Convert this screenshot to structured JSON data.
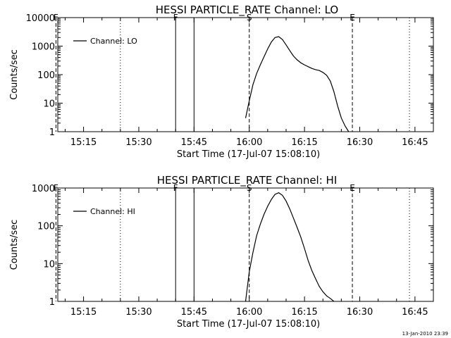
{
  "footer": {
    "timestamp": "13-Jan-2010 23:39"
  },
  "chart_data": [
    {
      "type": "line",
      "title": "HESSI PARTICLE_RATE Channel: LO",
      "xlabel": "Start Time (17-Jul-07 15:08:10)",
      "ylabel": "Counts/sec",
      "xlim": [
        "15:08",
        "16:50"
      ],
      "ylim": [
        1,
        10000
      ],
      "yscale": "log",
      "grid": false,
      "legend": "top-left",
      "x_ticks": [
        "15:15",
        "15:30",
        "15:45",
        "16:00",
        "16:15",
        "16:30",
        "16:45"
      ],
      "y_ticks": [
        "1",
        "10",
        "100",
        "1000",
        "10000"
      ],
      "series": [
        {
          "name": "Channel: LO",
          "x": [
            "15:59",
            "16:00",
            "16:01",
            "16:02",
            "16:03",
            "16:04",
            "16:05",
            "16:06",
            "16:07",
            "16:08",
            "16:09",
            "16:10",
            "16:11",
            "16:12",
            "16:13",
            "16:14",
            "16:15",
            "16:16",
            "16:17",
            "16:18",
            "16:19",
            "16:20",
            "16:21",
            "16:22",
            "16:23",
            "16:24",
            "16:25",
            "16:26",
            "16:27"
          ],
          "values": [
            3,
            12,
            45,
            110,
            220,
            420,
            800,
            1400,
            2000,
            2150,
            1700,
            1100,
            700,
            450,
            330,
            260,
            220,
            190,
            165,
            150,
            140,
            120,
            95,
            60,
            25,
            8,
            3,
            1.6,
            1
          ]
        }
      ],
      "markers": [
        {
          "label": "F",
          "time": "15:07.5",
          "style": "dashed"
        },
        {
          "label": "",
          "time": "15:25",
          "style": "dotted"
        },
        {
          "label": "F",
          "time": "15:40",
          "style": "solid"
        },
        {
          "label": "",
          "time": "15:45",
          "style": "solid"
        },
        {
          "label": "S",
          "time": "16:00",
          "style": "dashed"
        },
        {
          "label": "E",
          "time": "16:28",
          "style": "dashed"
        },
        {
          "label": "",
          "time": "16:43.5",
          "style": "dotted"
        }
      ]
    },
    {
      "type": "line",
      "title": "HESSI PARTICLE_RATE Channel: HI",
      "xlabel": "Start Time (17-Jul-07 15:08:10)",
      "ylabel": "Counts/sec",
      "xlim": [
        "15:08",
        "16:50"
      ],
      "ylim": [
        1,
        1000
      ],
      "yscale": "log",
      "grid": false,
      "legend": "top-left",
      "x_ticks": [
        "15:15",
        "15:30",
        "15:45",
        "16:00",
        "16:15",
        "16:30",
        "16:45"
      ],
      "y_ticks": [
        "1",
        "10",
        "100",
        "1000"
      ],
      "series": [
        {
          "name": "Channel: HI",
          "x": [
            "15:59",
            "16:00",
            "16:01",
            "16:02",
            "16:03",
            "16:04",
            "16:05",
            "16:06",
            "16:07",
            "16:08",
            "16:09",
            "16:10",
            "16:11",
            "16:12",
            "16:13",
            "16:14",
            "16:15",
            "16:16",
            "16:17",
            "16:18",
            "16:19",
            "16:20",
            "16:21",
            "16:22",
            "16:23"
          ],
          "values": [
            1,
            6,
            20,
            55,
            110,
            200,
            330,
            500,
            680,
            750,
            640,
            450,
            280,
            160,
            90,
            50,
            25,
            12,
            6.5,
            4,
            2.5,
            1.8,
            1.4,
            1.2,
            1
          ]
        }
      ],
      "markers": [
        {
          "label": "F",
          "time": "15:07.5",
          "style": "dashed"
        },
        {
          "label": "",
          "time": "15:25",
          "style": "dotted"
        },
        {
          "label": "F",
          "time": "15:40",
          "style": "solid"
        },
        {
          "label": "",
          "time": "15:45",
          "style": "solid"
        },
        {
          "label": "S",
          "time": "16:00",
          "style": "dashed"
        },
        {
          "label": "E",
          "time": "16:28",
          "style": "dashed"
        },
        {
          "label": "",
          "time": "16:43.5",
          "style": "dotted"
        }
      ]
    }
  ]
}
